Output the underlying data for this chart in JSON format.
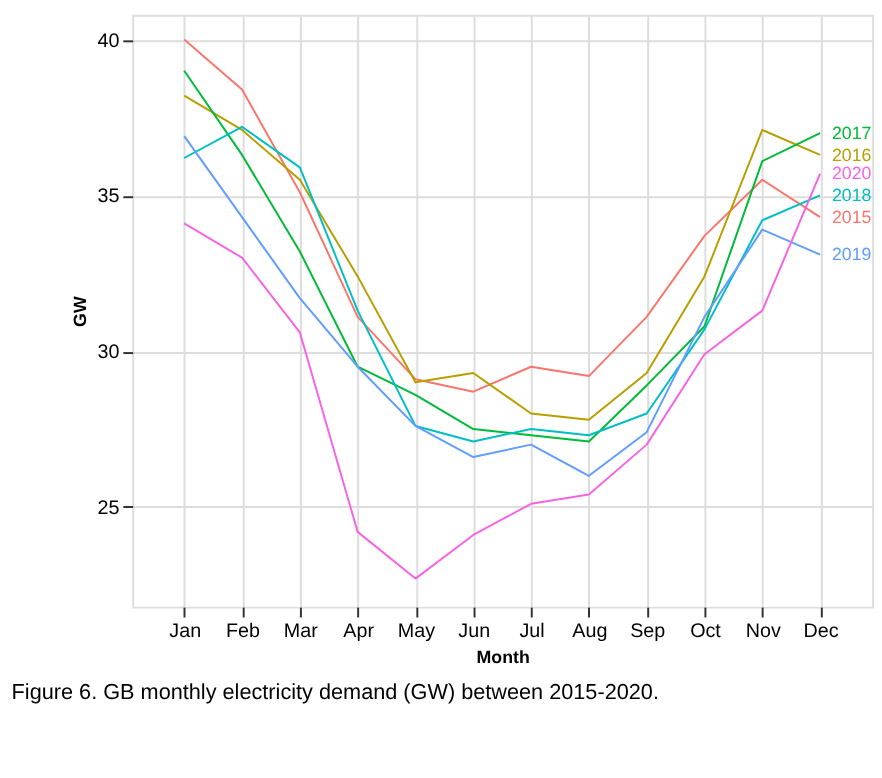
{
  "chart_data": {
    "type": "line",
    "xlabel": "Month",
    "ylabel": "GW",
    "categories": [
      "Jan",
      "Feb",
      "Mar",
      "Apr",
      "May",
      "Jun",
      "Jul",
      "Aug",
      "Sep",
      "Oct",
      "Nov",
      "Dec"
    ],
    "series": [
      {
        "name": "2015",
        "color": "#f8766d",
        "values": [
          40.0,
          38.4,
          35.1,
          31.1,
          29.1,
          28.7,
          29.5,
          29.2,
          31.1,
          33.7,
          35.5,
          34.3
        ]
      },
      {
        "name": "2016",
        "color": "#b79f00",
        "values": [
          38.2,
          37.1,
          35.5,
          32.4,
          29.0,
          29.3,
          28.0,
          27.8,
          29.3,
          32.4,
          37.1,
          36.3
        ]
      },
      {
        "name": "2017",
        "color": "#00ba38",
        "values": [
          39.0,
          36.3,
          33.2,
          29.5,
          28.6,
          27.5,
          27.3,
          27.1,
          28.9,
          30.8,
          36.1,
          37.0
        ]
      },
      {
        "name": "2018",
        "color": "#00bfc4",
        "values": [
          36.2,
          37.2,
          35.9,
          31.3,
          27.6,
          27.1,
          27.5,
          27.3,
          28.0,
          30.7,
          34.2,
          35.0
        ]
      },
      {
        "name": "2019",
        "color": "#619cff",
        "values": [
          36.9,
          34.3,
          31.7,
          29.5,
          27.6,
          26.6,
          27.0,
          26.0,
          27.4,
          31.1,
          33.9,
          33.1
        ]
      },
      {
        "name": "2020",
        "color": "#f564e3",
        "values": [
          34.1,
          33.0,
          30.6,
          24.2,
          22.7,
          24.1,
          25.1,
          25.4,
          27.0,
          29.9,
          31.3,
          35.7
        ]
      }
    ],
    "ylim": [
      21.8,
      40.8
    ],
    "yticks": [
      25,
      30,
      35,
      40
    ],
    "grid": true,
    "legend": false,
    "marker": "none",
    "line_style": "solid",
    "annotations": [
      "Figure 6. GB monthly electricity demand (GW) between 2015-2020."
    ]
  }
}
